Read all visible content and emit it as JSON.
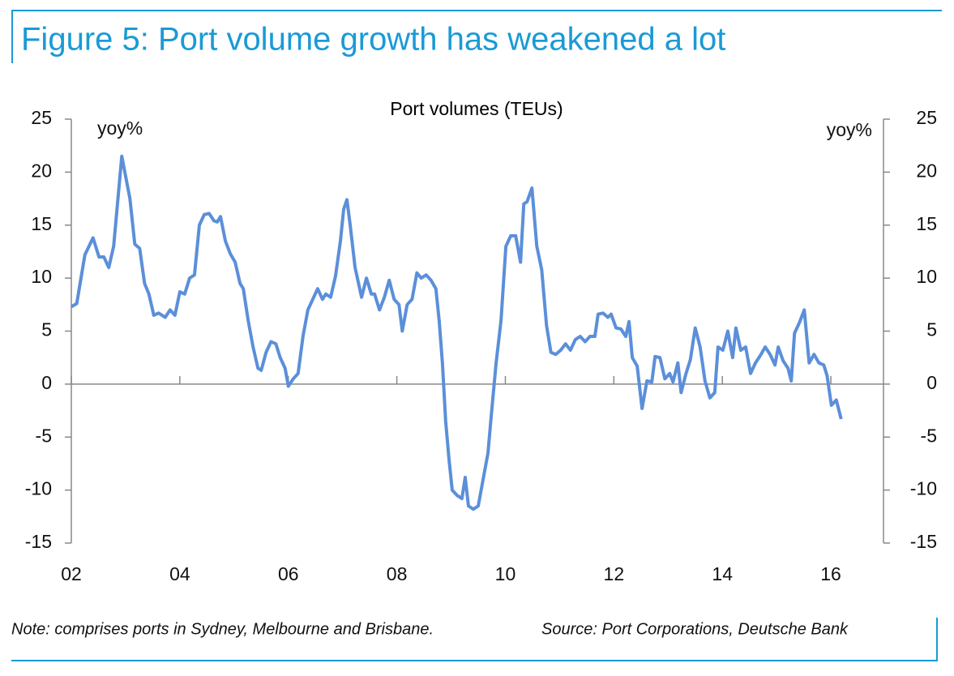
{
  "title": "Figure 5: Port volume growth has weakened a lot",
  "chart_data": {
    "type": "line",
    "title": "Port volumes (TEUs)",
    "y_label": "yoy%",
    "y2_label": "yoy%",
    "xlim": [
      2002,
      2016.97
    ],
    "xticks": [
      {
        "value": 2002,
        "label": "02"
      },
      {
        "value": 2004,
        "label": "04"
      },
      {
        "value": 2006,
        "label": "06"
      },
      {
        "value": 2008,
        "label": "08"
      },
      {
        "value": 2010,
        "label": "10"
      },
      {
        "value": 2012,
        "label": "12"
      },
      {
        "value": 2014,
        "label": "14"
      },
      {
        "value": 2016,
        "label": "16"
      }
    ],
    "ylim": [
      -15,
      25
    ],
    "yticks": [
      -15,
      -10,
      -5,
      0,
      5,
      10,
      15,
      20,
      25
    ],
    "y2lim": [
      -15,
      25
    ],
    "y2ticks": [
      -15,
      -10,
      -5,
      0,
      5,
      10,
      15,
      20,
      25
    ],
    "color": "#5b8fd9",
    "x": [
      2002.0,
      2002.1,
      2002.25,
      2002.4,
      2002.51,
      2002.6,
      2002.69,
      2002.78,
      2002.93,
      2003.08,
      2003.17,
      2003.26,
      2003.35,
      2003.43,
      2003.52,
      2003.61,
      2003.73,
      2003.82,
      2003.91,
      2004.0,
      2004.09,
      2004.18,
      2004.27,
      2004.36,
      2004.45,
      2004.54,
      2004.63,
      2004.69,
      2004.75,
      2004.84,
      2004.93,
      2005.02,
      2005.11,
      2005.17,
      2005.26,
      2005.35,
      2005.44,
      2005.5,
      2005.59,
      2005.68,
      2005.77,
      2005.85,
      2005.94,
      2006.0,
      2006.09,
      2006.18,
      2006.27,
      2006.36,
      2006.45,
      2006.54,
      2006.63,
      2006.69,
      2006.78,
      2006.87,
      2006.96,
      2007.02,
      2007.08,
      2007.14,
      2007.23,
      2007.35,
      2007.44,
      2007.53,
      2007.59,
      2007.68,
      2007.77,
      2007.86,
      2007.95,
      2008.04,
      2008.1,
      2008.19,
      2008.28,
      2008.37,
      2008.45,
      2008.54,
      2008.63,
      2008.72,
      2008.78,
      2008.84,
      2008.9,
      2008.96,
      2009.02,
      2009.11,
      2009.2,
      2009.26,
      2009.32,
      2009.41,
      2009.5,
      2009.59,
      2009.68,
      2009.74,
      2009.83,
      2009.92,
      2010.01,
      2010.1,
      2010.19,
      2010.28,
      2010.34,
      2010.4,
      2010.49,
      2010.58,
      2010.67,
      2010.76,
      2010.84,
      2010.93,
      2011.02,
      2011.11,
      2011.2,
      2011.29,
      2011.38,
      2011.47,
      2011.56,
      2011.65,
      2011.71,
      2011.8,
      2011.89,
      2011.95,
      2012.04,
      2012.13,
      2012.22,
      2012.28,
      2012.34,
      2012.43,
      2012.52,
      2012.61,
      2012.7,
      2012.76,
      2012.85,
      2012.94,
      2013.03,
      2013.09,
      2013.18,
      2013.24,
      2013.33,
      2013.41,
      2013.5,
      2013.59,
      2013.68,
      2013.77,
      2013.86,
      2013.92,
      2014.01,
      2014.1,
      2014.19,
      2014.25,
      2014.34,
      2014.43,
      2014.52,
      2014.61,
      2014.7,
      2014.79,
      2014.88,
      2014.97,
      2015.03,
      2015.12,
      2015.21,
      2015.27,
      2015.33,
      2015.42,
      2015.51,
      2015.6,
      2015.69,
      2015.78,
      2015.87,
      2015.93,
      2016.01,
      2016.1,
      2016.19
    ],
    "values": [
      7.3,
      7.6,
      12.2,
      13.8,
      12,
      12,
      11,
      13,
      21.5,
      17.5,
      13.2,
      12.8,
      9.5,
      8.5,
      6.5,
      6.7,
      6.3,
      7,
      6.5,
      8.7,
      8.5,
      10,
      10.3,
      15,
      16,
      16.1,
      15.4,
      15.3,
      15.8,
      13.5,
      12.3,
      11.5,
      9.5,
      9,
      6,
      3.5,
      1.5,
      1.3,
      3,
      4,
      3.8,
      2.5,
      1.5,
      -0.2,
      0.5,
      1,
      4.5,
      7,
      8,
      9,
      8,
      8.5,
      8.2,
      10.2,
      13.5,
      16.5,
      17.4,
      15,
      11,
      8.2,
      10,
      8.5,
      8.5,
      7,
      8.2,
      9.8,
      8,
      7.5,
      5,
      7.5,
      8,
      10.5,
      10,
      10.3,
      9.8,
      9,
      6,
      2,
      -3.5,
      -7,
      -10,
      -10.5,
      -10.8,
      -8.8,
      -11.5,
      -11.8,
      -11.5,
      -9,
      -6.5,
      -3,
      2,
      6,
      13,
      14,
      14,
      11.5,
      17,
      17.2,
      18.5,
      13,
      10.8,
      5.5,
      3,
      2.8,
      3.2,
      3.8,
      3.2,
      4.2,
      4.5,
      4,
      4.5,
      4.5,
      6.6,
      6.7,
      6.3,
      6.6,
      5.3,
      5.2,
      4.5,
      5.9,
      2.5,
      1.7,
      -2.3,
      0.3,
      0.2,
      2.6,
      2.5,
      0.5,
      1,
      0.2,
      2,
      -0.8,
      1,
      2.3,
      5.3,
      3.5,
      0.3,
      -1.3,
      -0.8,
      3.5,
      3.2,
      5,
      2.5,
      5.3,
      3.2,
      3.5,
      1,
      2,
      2.7,
      3.5,
      2.8,
      1.8,
      3.5,
      2.2,
      1.5,
      0.3,
      4.8,
      5.8,
      7,
      2,
      2.8,
      2,
      1.8,
      0.8,
      -2,
      -1.5,
      -3.3
    ]
  },
  "footer": {
    "note": "Note: comprises ports in Sydney, Melbourne and Brisbane.",
    "source": "Source: Port Corporations, Deutsche Bank"
  }
}
